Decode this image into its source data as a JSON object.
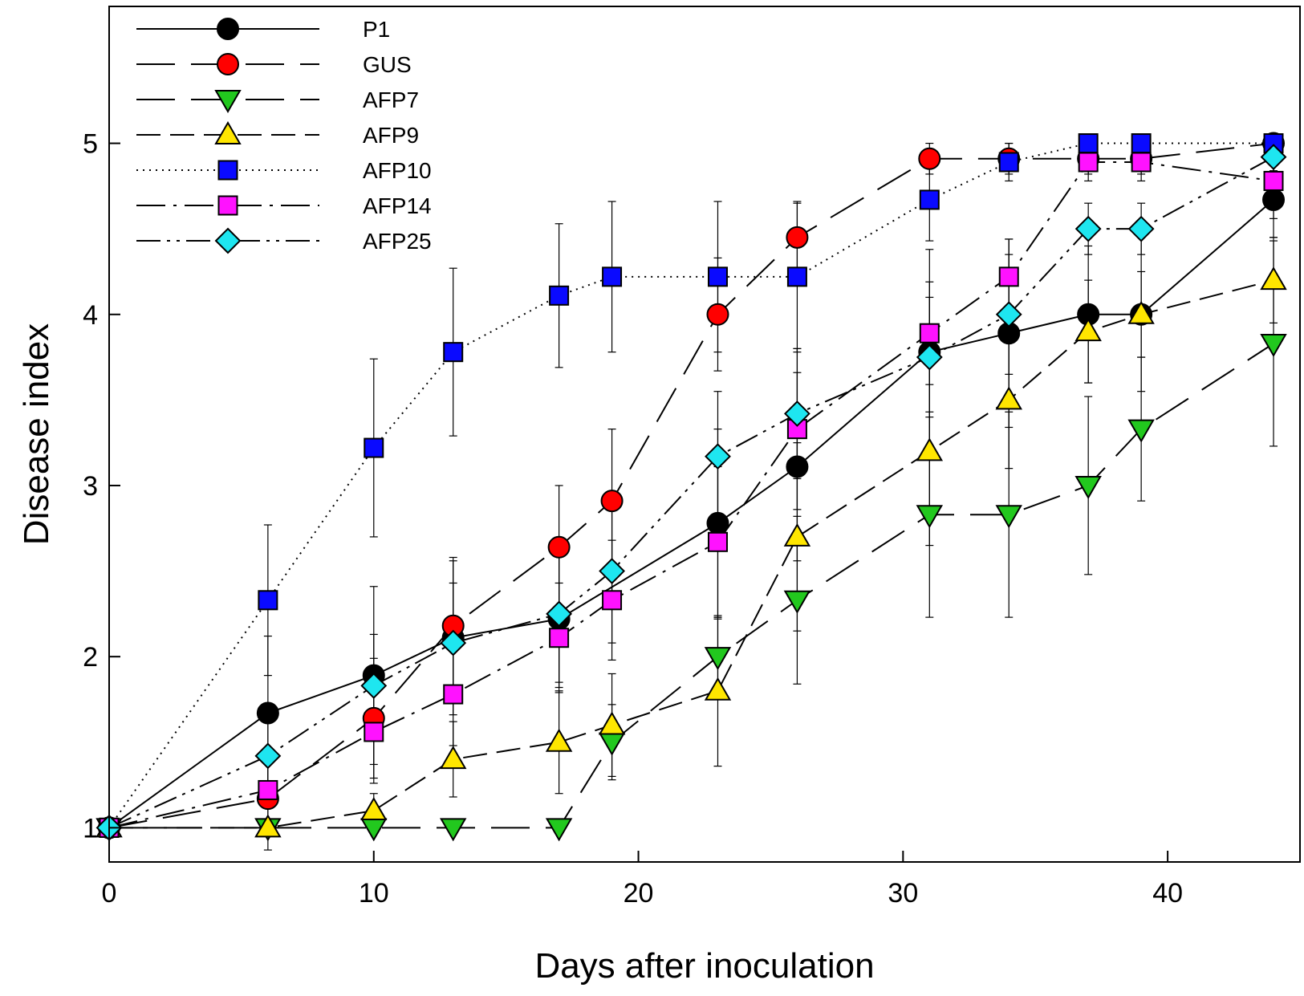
{
  "chart_data": {
    "type": "line",
    "title": "",
    "xlabel": "Days after inoculation",
    "ylabel": "Disease index",
    "xlim": [
      0,
      45
    ],
    "ylim": [
      0.8,
      5.8
    ],
    "xticks": [
      0,
      10,
      20,
      30,
      40
    ],
    "yticks": [
      1,
      2,
      3,
      4,
      5
    ],
    "x_tick_labels": [
      "0",
      "10",
      "20",
      "30",
      "40"
    ],
    "y_tick_labels": [
      "1",
      "2",
      "3",
      "4",
      "5"
    ],
    "grid": false,
    "legend_position": "top-left",
    "series": [
      {
        "name": "P1",
        "marker": "circle",
        "color": "#000000",
        "dash": "solid",
        "x": [
          0,
          6,
          10,
          13,
          17,
          23,
          26,
          31,
          34,
          37,
          39,
          44
        ],
        "y": [
          1.0,
          1.67,
          1.89,
          2.11,
          2.22,
          2.78,
          3.11,
          3.78,
          3.89,
          4.0,
          4.0,
          4.67
        ],
        "error": [
          0,
          0.45,
          0.52,
          0.45,
          0.4,
          0.55,
          0.55,
          0.6,
          0.55,
          0.4,
          0.45,
          0.22
        ]
      },
      {
        "name": "GUS",
        "marker": "circle",
        "color": "#ff0000",
        "dash": "longdash",
        "x": [
          0,
          6,
          10,
          13,
          17,
          19,
          23,
          26,
          31,
          34,
          37,
          39,
          44
        ],
        "y": [
          1.0,
          1.17,
          1.64,
          2.18,
          2.64,
          2.91,
          4.0,
          4.45,
          4.91,
          4.91,
          4.91,
          4.91,
          5.0
        ],
        "error": [
          0,
          0.3,
          0.35,
          0.4,
          0.36,
          0.42,
          0.33,
          0.2,
          0.09,
          0.09,
          0.09,
          0.09,
          0
        ]
      },
      {
        "name": "AFP7",
        "marker": "triangle-down",
        "color": "#22c81e",
        "dash": "longdash",
        "x": [
          0,
          6,
          10,
          13,
          17,
          19,
          23,
          26,
          31,
          34,
          37,
          39,
          44
        ],
        "y": [
          1.0,
          1.0,
          1.0,
          1.0,
          1.0,
          1.5,
          2.0,
          2.33,
          2.83,
          2.83,
          3.0,
          3.33,
          3.83
        ],
        "error": [
          0,
          0,
          0,
          0,
          0,
          0.22,
          0.22,
          0.49,
          0.6,
          0.6,
          0.52,
          0.42,
          0.6
        ]
      },
      {
        "name": "AFP9",
        "marker": "triangle-up",
        "color": "#ffe600",
        "dash": "dashed",
        "x": [
          0,
          6,
          10,
          13,
          17,
          19,
          23,
          26,
          31,
          34,
          37,
          39,
          44
        ],
        "y": [
          1.0,
          1.0,
          1.1,
          1.4,
          1.5,
          1.6,
          1.8,
          2.7,
          3.2,
          3.5,
          3.9,
          4.0,
          4.2
        ],
        "error": [
          0,
          0,
          0.1,
          0.22,
          0.3,
          0.3,
          0.44,
          0.55,
          0.55,
          0.4,
          0.3,
          0.25,
          0.25
        ]
      },
      {
        "name": "AFP10",
        "marker": "square",
        "color": "#0a0aff",
        "dash": "dotted",
        "x": [
          0,
          6,
          10,
          13,
          17,
          19,
          23,
          26,
          31,
          34,
          37,
          39,
          44
        ],
        "y": [
          1.0,
          2.33,
          3.22,
          3.78,
          4.11,
          4.22,
          4.22,
          4.22,
          4.67,
          4.89,
          5.0,
          5.0,
          5.0
        ],
        "error": [
          0,
          0.44,
          0.52,
          0.49,
          0.42,
          0.44,
          0.44,
          0.44,
          0.24,
          0.11,
          0,
          0,
          0
        ]
      },
      {
        "name": "AFP14",
        "marker": "square",
        "color": "#ff12ff",
        "dash": "dashdot",
        "x": [
          0,
          6,
          10,
          13,
          17,
          19,
          23,
          26,
          31,
          34,
          37,
          39,
          44
        ],
        "y": [
          1.0,
          1.22,
          1.56,
          1.78,
          2.11,
          2.33,
          2.67,
          3.33,
          3.89,
          4.22,
          4.89,
          4.89,
          4.78
        ],
        "error": [
          0,
          0.22,
          0.3,
          0.3,
          0.32,
          0.35,
          0.44,
          0.47,
          0.3,
          0.22,
          0.11,
          0.11,
          0.22
        ]
      },
      {
        "name": "AFP25",
        "marker": "diamond",
        "color": "#1ee6f0",
        "dash": "dashdotdot",
        "x": [
          0,
          6,
          10,
          13,
          17,
          19,
          23,
          26,
          31,
          34,
          37,
          39,
          44
        ],
        "y": [
          1.0,
          1.42,
          1.83,
          2.08,
          2.25,
          2.5,
          3.17,
          3.42,
          3.75,
          4.0,
          4.5,
          4.5,
          4.92
        ],
        "error": [
          0,
          0.25,
          0.3,
          0.35,
          0.4,
          0.42,
          0.38,
          0.38,
          0.35,
          0.35,
          0.15,
          0.15,
          0.08
        ]
      }
    ]
  }
}
